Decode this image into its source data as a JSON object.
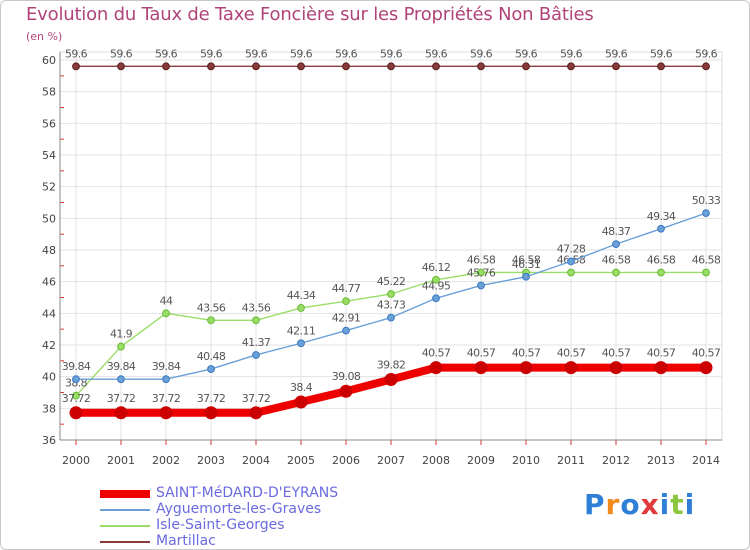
{
  "chart_data": {
    "type": "line",
    "title": "Evolution du Taux de Taxe Foncière sur les Propriétés Non Bâties",
    "ylabel": "(en %)",
    "ylim": [
      36,
      60
    ],
    "yticks": [
      36,
      38,
      40,
      42,
      44,
      46,
      48,
      50,
      52,
      54,
      56,
      58,
      60
    ],
    "x": [
      2000,
      2001,
      2002,
      2003,
      2004,
      2005,
      2006,
      2007,
      2008,
      2009,
      2010,
      2011,
      2012,
      2013,
      2014
    ],
    "grid": true,
    "legend_position": "bottom-left",
    "series": [
      {
        "name": "SAINT-MéDARD-D'EYRANS",
        "color": "#ee0000",
        "values": [
          37.72,
          37.72,
          37.72,
          37.72,
          37.72,
          38.4,
          39.08,
          39.82,
          40.57,
          40.57,
          40.57,
          40.57,
          40.57,
          40.57,
          40.57
        ],
        "labels": [
          "37.72",
          "37.72",
          "37.72",
          "37.72",
          "37.72",
          "38.4",
          "39.08",
          "39.82",
          "40.57",
          "40.57",
          "40.57",
          "40.57",
          "40.57",
          "40.57",
          "40.57"
        ]
      },
      {
        "name": "Ayguemorte-les-Graves",
        "color": "#6aa0d8",
        "values": [
          39.84,
          39.84,
          39.84,
          40.48,
          41.37,
          42.11,
          42.91,
          43.73,
          44.95,
          45.76,
          46.31,
          47.28,
          48.37,
          49.34,
          50.33
        ],
        "labels": [
          "39.84",
          "39.84",
          "39.84",
          "40.48",
          "41.37",
          "42.11",
          "42.91",
          "43.73",
          "44.95",
          "45.76",
          "46.31",
          "47.28",
          "48.37",
          "49.34",
          "50.33"
        ]
      },
      {
        "name": "Isle-Saint-Georges",
        "color": "#99dd66",
        "values": [
          38.8,
          41.9,
          44,
          43.56,
          43.56,
          44.34,
          44.77,
          45.22,
          46.12,
          46.58,
          46.58,
          46.58,
          46.58,
          46.58,
          46.58
        ],
        "labels": [
          "38.8",
          "41.9",
          "44",
          "43.56",
          "43.56",
          "44.34",
          "44.77",
          "45.22",
          "46.12",
          "46.58",
          "46.58",
          "46.58",
          "46.58",
          "46.58",
          "46.58"
        ]
      },
      {
        "name": "Martillac",
        "color": "#8a3a3a",
        "values": [
          59.6,
          59.6,
          59.6,
          59.6,
          59.6,
          59.6,
          59.6,
          59.6,
          59.6,
          59.6,
          59.6,
          59.6,
          59.6,
          59.6,
          59.6
        ],
        "labels": [
          "59.6",
          "59.6",
          "59.6",
          "59.6",
          "59.6",
          "59.6",
          "59.6",
          "59.6",
          "59.6",
          "59.6",
          "59.6",
          "59.6",
          "59.6",
          "59.6",
          "59.6"
        ]
      }
    ]
  },
  "brand": {
    "logo_text": "Proxiti"
  }
}
